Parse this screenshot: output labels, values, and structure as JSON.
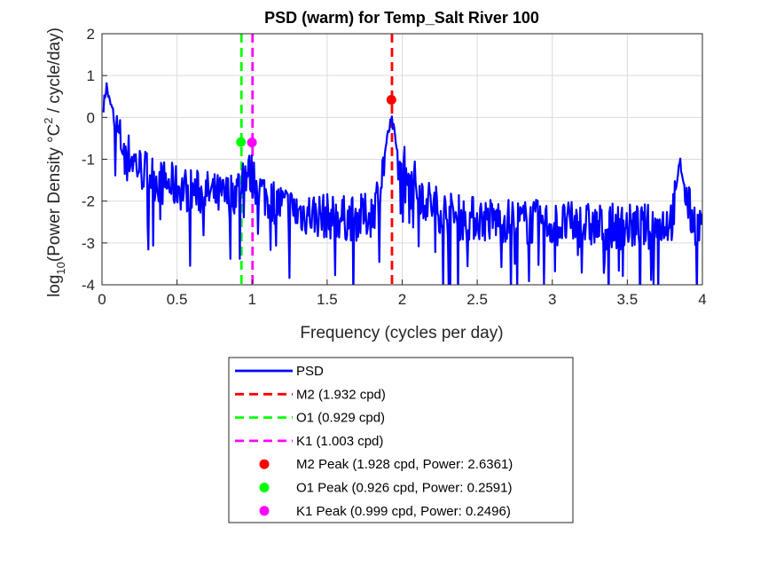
{
  "chart_data": {
    "type": "line",
    "title": "PSD (warm) for Temp_Salt River 100",
    "xlabel": "Frequency (cycles per day)",
    "ylabel_prefix": "log",
    "ylabel_sub": "10",
    "ylabel_mid": "(Power Density °C",
    "ylabel_sup": "2",
    "ylabel_end": " / cycle/day)",
    "xlim": [
      0,
      4
    ],
    "ylim": [
      -4,
      2
    ],
    "xticks": [
      0,
      0.5,
      1,
      1.5,
      2,
      2.5,
      3,
      3.5,
      4
    ],
    "xtick_labels": [
      "0",
      "0.5",
      "1",
      "1.5",
      "2",
      "2.5",
      "3",
      "3.5",
      "4"
    ],
    "yticks": [
      2,
      1,
      0,
      -1,
      -2,
      -3,
      -4
    ],
    "ytick_labels": [
      "2",
      "1",
      "0",
      "-1",
      "-2",
      "-3",
      "-4"
    ],
    "grid": true,
    "legend_position": "below plot",
    "psd": {
      "name": "PSD",
      "color": "#0000ff",
      "x": [
        0.01,
        0.03,
        0.05,
        0.07,
        0.09,
        0.11,
        0.13,
        0.15,
        0.18,
        0.21,
        0.25,
        0.3,
        0.35,
        0.4,
        0.45,
        0.5,
        0.55,
        0.6,
        0.65,
        0.7,
        0.75,
        0.8,
        0.85,
        0.9,
        0.93,
        0.96,
        1.0,
        1.05,
        1.1,
        1.2,
        1.3,
        1.4,
        1.5,
        1.6,
        1.7,
        1.8,
        1.85,
        1.88,
        1.91,
        1.93,
        1.95,
        1.98,
        2.0,
        2.02,
        2.1,
        2.2,
        2.3,
        2.4,
        2.5,
        2.6,
        2.7,
        2.8,
        2.9,
        3.0,
        3.1,
        3.2,
        3.3,
        3.4,
        3.5,
        3.6,
        3.7,
        3.8,
        3.83,
        3.85,
        3.88,
        3.92,
        3.95,
        4.0
      ],
      "y": [
        0.3,
        0.8,
        0.4,
        0.2,
        -0.1,
        -0.3,
        -0.5,
        -0.6,
        -0.8,
        -0.9,
        -1.1,
        -1.2,
        -1.35,
        -1.45,
        -1.5,
        -1.55,
        -1.6,
        -1.65,
        -1.7,
        -1.7,
        -1.75,
        -1.8,
        -1.75,
        -1.6,
        -1.4,
        -1.2,
        -1.3,
        -1.6,
        -1.8,
        -2.0,
        -2.15,
        -2.2,
        -2.25,
        -2.3,
        -2.3,
        -2.2,
        -1.6,
        -0.9,
        -0.3,
        -0.05,
        -0.4,
        -1.2,
        -1.3,
        -0.9,
        -1.6,
        -2.0,
        -2.2,
        -2.3,
        -2.3,
        -2.35,
        -2.35,
        -2.4,
        -2.4,
        -2.45,
        -2.45,
        -2.45,
        -2.5,
        -2.5,
        -2.5,
        -2.5,
        -2.5,
        -2.3,
        -1.6,
        -1.0,
        -1.6,
        -2.2,
        -2.4,
        -2.5
      ]
    },
    "tide_lines": [
      {
        "name": "M2",
        "freq": 1.932,
        "label": "M2 (1.932 cpd)",
        "color": "#ff0000"
      },
      {
        "name": "O1",
        "freq": 0.929,
        "label": "O1 (0.929 cpd)",
        "color": "#00ff00"
      },
      {
        "name": "K1",
        "freq": 1.003,
        "label": "K1 (1.003 cpd)",
        "color": "#ff00ff"
      }
    ],
    "peaks": [
      {
        "name": "M2 Peak",
        "freq": 1.928,
        "power": 2.6361,
        "log10_power": 0.42,
        "label": "M2 Peak (1.928 cpd, Power: 2.6361)",
        "color": "#ff0000"
      },
      {
        "name": "O1 Peak",
        "freq": 0.926,
        "power": 0.2591,
        "log10_power": -0.59,
        "label": "O1 Peak (0.926 cpd, Power: 0.2591)",
        "color": "#00ff00"
      },
      {
        "name": "K1 Peak",
        "freq": 0.999,
        "power": 0.2496,
        "log10_power": -0.6,
        "label": "K1 Peak (0.999 cpd, Power: 0.2496)",
        "color": "#ff00ff"
      }
    ],
    "legend": [
      {
        "label": "PSD",
        "style": "line",
        "color": "#0000ff"
      },
      {
        "label": "M2 (1.932 cpd)",
        "style": "dash",
        "color": "#ff0000"
      },
      {
        "label": "O1 (0.929 cpd)",
        "style": "dash",
        "color": "#00ff00"
      },
      {
        "label": "K1 (1.003 cpd)",
        "style": "dash",
        "color": "#ff00ff"
      },
      {
        "label": "M2 Peak (1.928 cpd, Power: 2.6361)",
        "style": "marker",
        "color": "#ff0000"
      },
      {
        "label": "O1 Peak (0.926 cpd, Power: 0.2591)",
        "style": "marker",
        "color": "#00ff00"
      },
      {
        "label": "K1 Peak (0.999 cpd, Power: 0.2496)",
        "style": "marker",
        "color": "#ff00ff"
      }
    ]
  }
}
